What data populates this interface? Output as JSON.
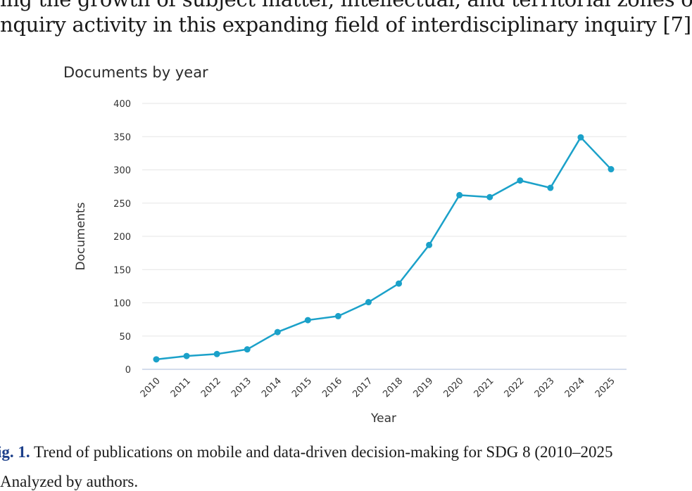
{
  "document": {
    "top_text_partial": "ing the growth of subject matter, intellectual, and territorial zones of in",
    "intro_line": "nquiry activity in this expanding field of interdisciplinary inquiry [7].",
    "caption_label": "ig. 1.",
    "caption_text": " Trend of publications on mobile and data-driven decision-making for SDG 8 (2010–2025",
    "caption_second_line": "Analyzed by authors."
  },
  "chart_data": {
    "type": "line",
    "title": "Documents by year",
    "xlabel": "Year",
    "ylabel": "Documents",
    "ylim": [
      0,
      400
    ],
    "yticks": [
      0,
      50,
      100,
      150,
      200,
      250,
      300,
      350,
      400
    ],
    "grid": true,
    "categories": [
      "2010",
      "2011",
      "2012",
      "2013",
      "2014",
      "2015",
      "2016",
      "2017",
      "2018",
      "2019",
      "2020",
      "2021",
      "2022",
      "2023",
      "2024",
      "2025"
    ],
    "series": [
      {
        "values": [
          15,
          20,
          23,
          30,
          56,
          74,
          80,
          101,
          129,
          187,
          262,
          259,
          284,
          273,
          349,
          301
        ],
        "color": "#1ba1c9"
      }
    ],
    "colors": {
      "line": "#1ba1c9",
      "grid": "#e6e6e6",
      "axis": "#c5d0e6",
      "text": "#333333"
    }
  }
}
